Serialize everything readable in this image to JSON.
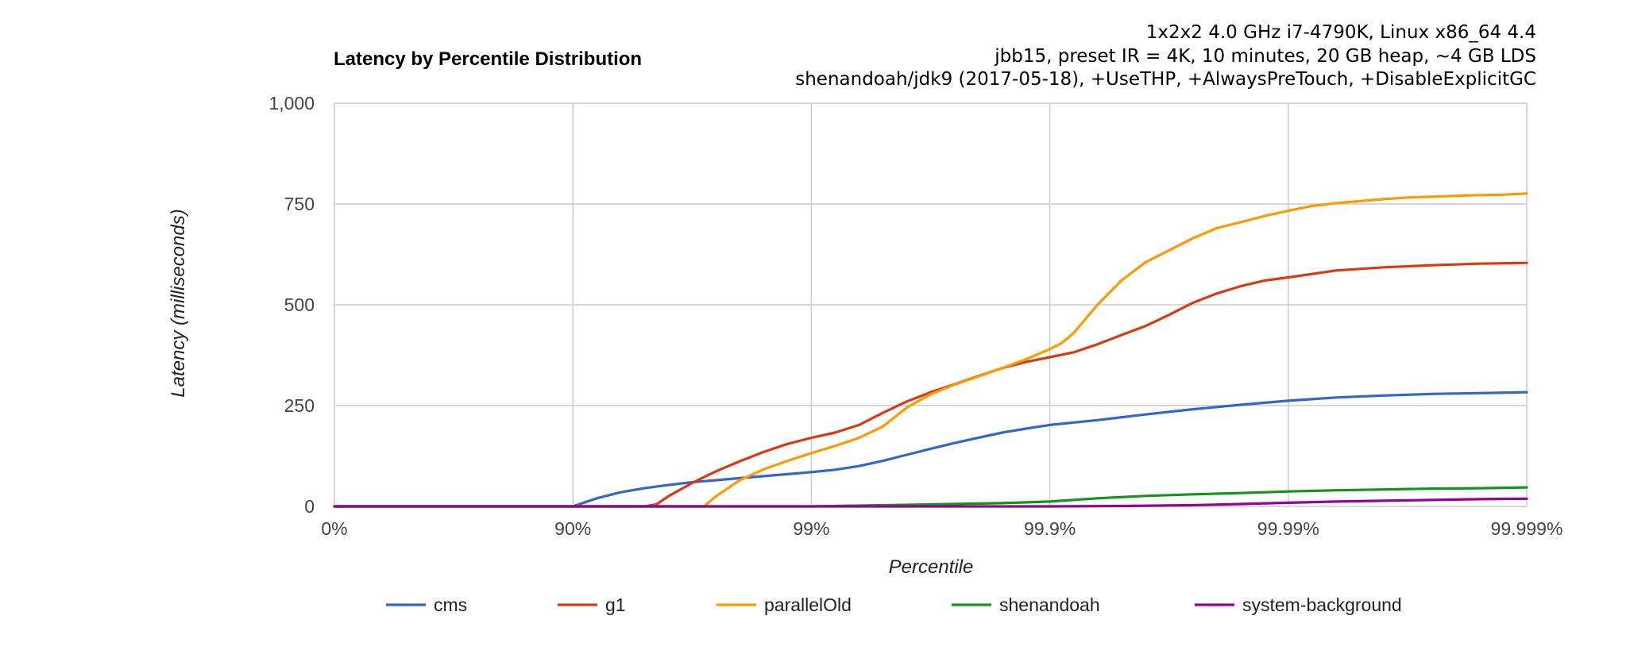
{
  "chart_data": {
    "type": "line",
    "title": "Latency by Percentile Distribution",
    "subtitle_lines": [
      "1x2x2 4.0 GHz i7-4790K, Linux x86_64 4.4",
      "jbb15, preset IR = 4K, 10 minutes, 20 GB heap, ~4 GB LDS",
      "shenandoah/jdk9 (2017-05-18), +UseTHP, +AlwaysPreTouch, +DisableExplicitGC"
    ],
    "xlabel": "Percentile",
    "ylabel": "Latency (milliseconds)",
    "x_scale": "log-nines (position = number of nines, 0 = 0%, 5 = 99.999%)",
    "xlim": [
      0,
      5
    ],
    "ylim": [
      0,
      1000
    ],
    "x_ticks": [
      {
        "pos": 0,
        "label": "0%"
      },
      {
        "pos": 1,
        "label": "90%"
      },
      {
        "pos": 2,
        "label": "99%"
      },
      {
        "pos": 3,
        "label": "99.9%"
      },
      {
        "pos": 4,
        "label": "99.99%"
      },
      {
        "pos": 5,
        "label": "99.999%"
      }
    ],
    "y_ticks": [
      {
        "value": 0,
        "label": "0"
      },
      {
        "value": 250,
        "label": "250"
      },
      {
        "value": 500,
        "label": "500"
      },
      {
        "value": 750,
        "label": "750"
      },
      {
        "value": 1000,
        "label": "1,000"
      }
    ],
    "grid": true,
    "legend_position": "bottom",
    "series": [
      {
        "name": "cms",
        "color": "#3366cc",
        "points": [
          [
            0,
            0
          ],
          [
            1,
            0
          ],
          [
            1.1,
            20
          ],
          [
            1.2,
            35
          ],
          [
            1.3,
            45
          ],
          [
            1.4,
            53
          ],
          [
            1.5,
            60
          ],
          [
            1.6,
            65
          ],
          [
            1.7,
            70
          ],
          [
            1.8,
            75
          ],
          [
            1.9,
            80
          ],
          [
            2,
            85
          ],
          [
            2.1,
            91
          ],
          [
            2.2,
            100
          ],
          [
            2.3,
            113
          ],
          [
            2.4,
            128
          ],
          [
            2.5,
            143
          ],
          [
            2.6,
            157
          ],
          [
            2.7,
            170
          ],
          [
            2.8,
            183
          ],
          [
            2.9,
            193
          ],
          [
            3,
            202
          ],
          [
            3.2,
            214
          ],
          [
            3.4,
            228
          ],
          [
            3.6,
            241
          ],
          [
            3.8,
            252
          ],
          [
            4,
            262
          ],
          [
            4.2,
            270
          ],
          [
            4.4,
            275
          ],
          [
            4.6,
            279
          ],
          [
            4.8,
            281
          ],
          [
            5,
            283
          ]
        ]
      },
      {
        "name": "g1",
        "color": "#dc3912",
        "points": [
          [
            0,
            0
          ],
          [
            1.3,
            0
          ],
          [
            1.35,
            5
          ],
          [
            1.4,
            25
          ],
          [
            1.5,
            58
          ],
          [
            1.6,
            87
          ],
          [
            1.7,
            112
          ],
          [
            1.8,
            135
          ],
          [
            1.9,
            155
          ],
          [
            2,
            170
          ],
          [
            2.1,
            183
          ],
          [
            2.2,
            202
          ],
          [
            2.3,
            232
          ],
          [
            2.4,
            260
          ],
          [
            2.5,
            283
          ],
          [
            2.6,
            303
          ],
          [
            2.7,
            323
          ],
          [
            2.8,
            343
          ],
          [
            2.9,
            358
          ],
          [
            3,
            370
          ],
          [
            3.1,
            382
          ],
          [
            3.2,
            402
          ],
          [
            3.3,
            425
          ],
          [
            3.4,
            447
          ],
          [
            3.5,
            475
          ],
          [
            3.6,
            505
          ],
          [
            3.7,
            528
          ],
          [
            3.8,
            546
          ],
          [
            3.9,
            560
          ],
          [
            4,
            568
          ],
          [
            4.2,
            585
          ],
          [
            4.4,
            593
          ],
          [
            4.6,
            598
          ],
          [
            4.8,
            602
          ],
          [
            5,
            604
          ]
        ]
      },
      {
        "name": "parallelOld",
        "color": "#ff9900",
        "points": [
          [
            0,
            0
          ],
          [
            1.5,
            0
          ],
          [
            1.55,
            0
          ],
          [
            1.6,
            25
          ],
          [
            1.7,
            65
          ],
          [
            1.8,
            92
          ],
          [
            1.9,
            113
          ],
          [
            2,
            132
          ],
          [
            2.1,
            150
          ],
          [
            2.2,
            170
          ],
          [
            2.3,
            198
          ],
          [
            2.4,
            245
          ],
          [
            2.5,
            278
          ],
          [
            2.6,
            302
          ],
          [
            2.7,
            322
          ],
          [
            2.8,
            343
          ],
          [
            2.9,
            365
          ],
          [
            3,
            390
          ],
          [
            3.05,
            405
          ],
          [
            3.1,
            430
          ],
          [
            3.2,
            500
          ],
          [
            3.3,
            560
          ],
          [
            3.4,
            605
          ],
          [
            3.5,
            635
          ],
          [
            3.6,
            665
          ],
          [
            3.7,
            690
          ],
          [
            3.8,
            705
          ],
          [
            3.9,
            720
          ],
          [
            4,
            733
          ],
          [
            4.1,
            745
          ],
          [
            4.2,
            752
          ],
          [
            4.3,
            757
          ],
          [
            4.4,
            762
          ],
          [
            4.5,
            766
          ],
          [
            4.6,
            768
          ],
          [
            4.7,
            770
          ],
          [
            4.8,
            772
          ],
          [
            4.9,
            773
          ],
          [
            5,
            776
          ]
        ]
      },
      {
        "name": "shenandoah",
        "color": "#109618",
        "points": [
          [
            0,
            0
          ],
          [
            2,
            0
          ],
          [
            2.2,
            2
          ],
          [
            2.5,
            5
          ],
          [
            2.8,
            8
          ],
          [
            3,
            12
          ],
          [
            3.2,
            20
          ],
          [
            3.4,
            26
          ],
          [
            3.6,
            30
          ],
          [
            3.8,
            33
          ],
          [
            4,
            37
          ],
          [
            4.2,
            40
          ],
          [
            4.4,
            42
          ],
          [
            4.6,
            44
          ],
          [
            4.8,
            45
          ],
          [
            5,
            47
          ]
        ]
      },
      {
        "name": "system-background",
        "color": "#990099",
        "points": [
          [
            0,
            0
          ],
          [
            3,
            0
          ],
          [
            3.3,
            1
          ],
          [
            3.6,
            3
          ],
          [
            3.8,
            6
          ],
          [
            4,
            9
          ],
          [
            4.2,
            12
          ],
          [
            4.4,
            14
          ],
          [
            4.6,
            16
          ],
          [
            4.8,
            18
          ],
          [
            5,
            19
          ]
        ]
      }
    ]
  }
}
